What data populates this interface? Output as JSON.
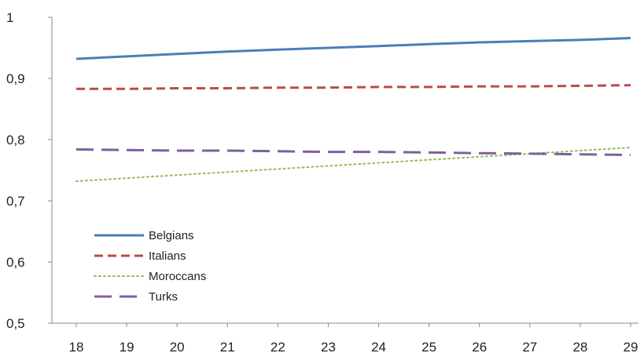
{
  "chart_data": {
    "type": "line",
    "title": "",
    "xlabel": "",
    "ylabel": "",
    "x": [
      18,
      19,
      20,
      21,
      22,
      23,
      24,
      25,
      26,
      27,
      28,
      29
    ],
    "xtick_labels": [
      "18",
      "19",
      "20",
      "21",
      "22",
      "23",
      "24",
      "25",
      "26",
      "27",
      "28",
      "29"
    ],
    "ylim": [
      0.5,
      1.0
    ],
    "yticks": [
      0.5,
      0.6,
      0.7,
      0.8,
      0.9,
      1.0
    ],
    "ytick_labels": [
      "0,5",
      "0,6",
      "0,7",
      "0,8",
      "0,9",
      "1"
    ],
    "grid": false,
    "legend_position": "bottom-left",
    "series": [
      {
        "name": "Belgians",
        "color": "#4a7ebb",
        "dash": "solid",
        "values": [
          0.932,
          0.936,
          0.94,
          0.944,
          0.947,
          0.95,
          0.953,
          0.956,
          0.959,
          0.961,
          0.963,
          0.966
        ]
      },
      {
        "name": "Italians",
        "color": "#be4b48",
        "dash": "dash",
        "values": [
          0.883,
          0.883,
          0.884,
          0.884,
          0.885,
          0.885,
          0.886,
          0.886,
          0.887,
          0.887,
          0.888,
          0.889
        ]
      },
      {
        "name": "Moroccans",
        "color": "#98b954",
        "dash": "dot",
        "values": [
          0.732,
          0.737,
          0.742,
          0.747,
          0.752,
          0.757,
          0.762,
          0.767,
          0.772,
          0.777,
          0.782,
          0.787
        ]
      },
      {
        "name": "Turks",
        "color": "#7d60a0",
        "dash": "longdash",
        "values": [
          0.784,
          0.783,
          0.782,
          0.782,
          0.781,
          0.78,
          0.78,
          0.779,
          0.778,
          0.777,
          0.776,
          0.775
        ]
      }
    ]
  }
}
